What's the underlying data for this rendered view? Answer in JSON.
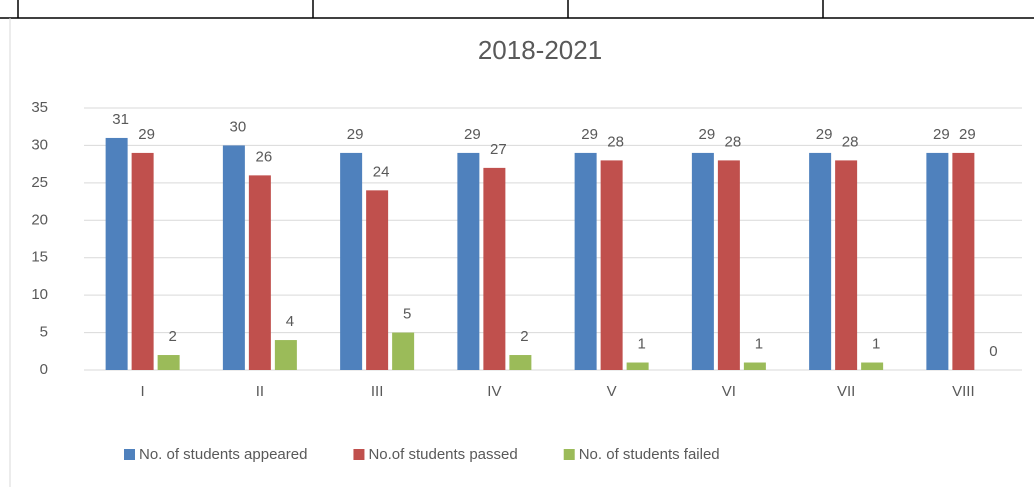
{
  "chart_data": {
    "type": "bar",
    "title": "2018-2021",
    "categories": [
      "I",
      "II",
      "III",
      "IV",
      "V",
      "VI",
      "VII",
      "VIII"
    ],
    "series": [
      {
        "name": "No. of students appeared",
        "color": "#4f81bd",
        "values": [
          31,
          30,
          29,
          29,
          29,
          29,
          29,
          29
        ]
      },
      {
        "name": "No.of students passed",
        "color": "#c0504d",
        "values": [
          29,
          26,
          24,
          27,
          28,
          28,
          28,
          29
        ]
      },
      {
        "name": "No. of students failed",
        "color": "#9bbb59",
        "values": [
          2,
          4,
          5,
          2,
          1,
          1,
          1,
          0
        ]
      }
    ],
    "ylim": [
      0,
      35
    ],
    "yticks": [
      0,
      5,
      10,
      15,
      20,
      25,
      30,
      35
    ],
    "grid": true,
    "legend": "bottom"
  }
}
